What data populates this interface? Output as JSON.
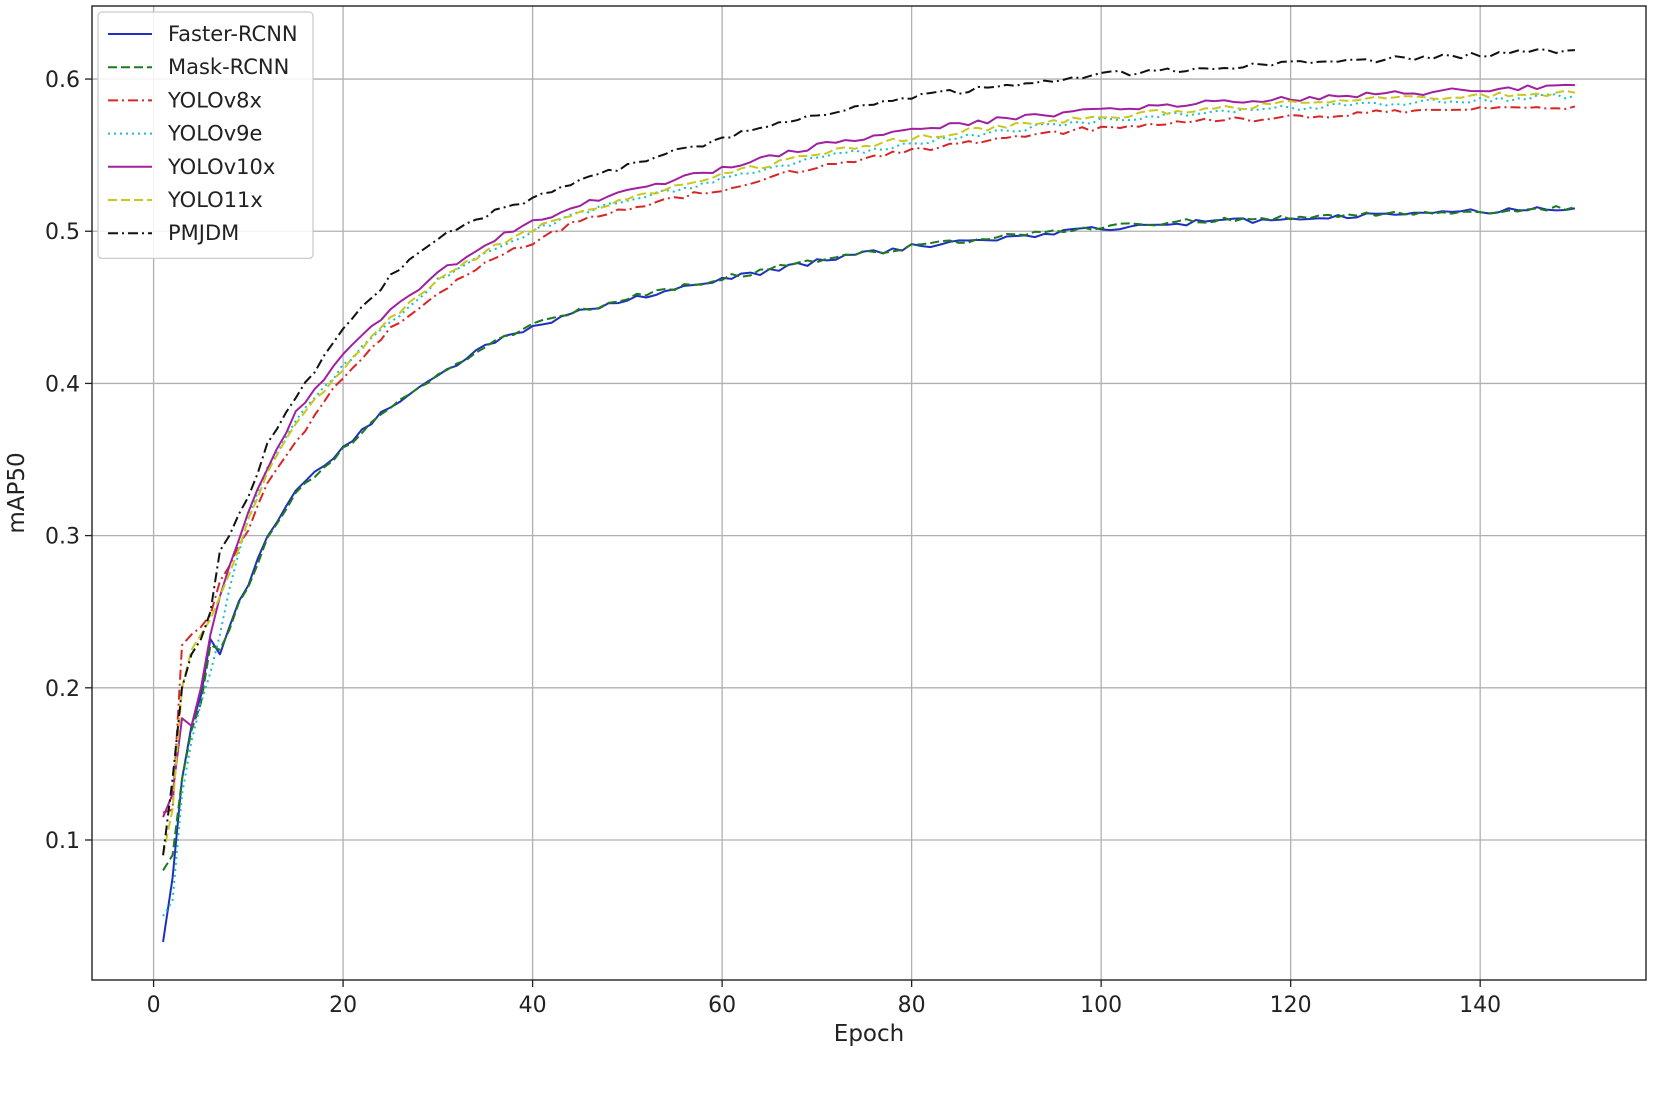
{
  "chart_data": {
    "type": "line",
    "title": "",
    "xlabel": "Epoch",
    "ylabel": "mAP50",
    "xlim": [
      -6.5,
      157.5
    ],
    "ylim": [
      0.008,
      0.648
    ],
    "x_ticks": [
      0,
      20,
      40,
      60,
      80,
      100,
      120,
      140
    ],
    "y_ticks": [
      0.1,
      0.2,
      0.3,
      0.4,
      0.5,
      0.6
    ],
    "grid": true,
    "legend_position": "upper left",
    "x_start": 1,
    "x_end": 150,
    "series": [
      {
        "name": "Faster-RCNN",
        "color": "#1f2fbf",
        "style": "solid",
        "points": [
          [
            1,
            0.033
          ],
          [
            2,
            0.075
          ],
          [
            3,
            0.14
          ],
          [
            4,
            0.175
          ],
          [
            5,
            0.195
          ],
          [
            6,
            0.232
          ],
          [
            7,
            0.222
          ],
          [
            8,
            0.24
          ],
          [
            9,
            0.258
          ],
          [
            10,
            0.267
          ],
          [
            12,
            0.3
          ],
          [
            15,
            0.33
          ],
          [
            20,
            0.358
          ],
          [
            25,
            0.385
          ],
          [
            30,
            0.405
          ],
          [
            35,
            0.425
          ],
          [
            40,
            0.437
          ],
          [
            45,
            0.448
          ],
          [
            50,
            0.455
          ],
          [
            60,
            0.468
          ],
          [
            70,
            0.48
          ],
          [
            80,
            0.49
          ],
          [
            90,
            0.496
          ],
          [
            100,
            0.502
          ],
          [
            110,
            0.506
          ],
          [
            120,
            0.508
          ],
          [
            130,
            0.511
          ],
          [
            140,
            0.513
          ],
          [
            150,
            0.515
          ]
        ]
      },
      {
        "name": "Mask-RCNN",
        "color": "#1e7a1e",
        "style": "dashed",
        "points": [
          [
            1,
            0.08
          ],
          [
            2,
            0.09
          ],
          [
            3,
            0.14
          ],
          [
            4,
            0.172
          ],
          [
            5,
            0.19
          ],
          [
            6,
            0.228
          ],
          [
            7,
            0.225
          ],
          [
            8,
            0.238
          ],
          [
            9,
            0.255
          ],
          [
            10,
            0.268
          ],
          [
            12,
            0.298
          ],
          [
            15,
            0.328
          ],
          [
            20,
            0.357
          ],
          [
            25,
            0.384
          ],
          [
            30,
            0.405
          ],
          [
            35,
            0.425
          ],
          [
            40,
            0.438
          ],
          [
            45,
            0.448
          ],
          [
            50,
            0.456
          ],
          [
            60,
            0.469
          ],
          [
            70,
            0.481
          ],
          [
            80,
            0.49
          ],
          [
            90,
            0.497
          ],
          [
            100,
            0.503
          ],
          [
            110,
            0.507
          ],
          [
            120,
            0.509
          ],
          [
            130,
            0.512
          ],
          [
            140,
            0.513
          ],
          [
            150,
            0.516
          ]
        ]
      },
      {
        "name": "YOLOv8x",
        "color": "#d62728",
        "style": "dashdot",
        "points": [
          [
            1,
            0.118
          ],
          [
            2,
            0.12
          ],
          [
            3,
            0.228
          ],
          [
            4,
            0.235
          ],
          [
            5,
            0.24
          ],
          [
            6,
            0.248
          ],
          [
            7,
            0.27
          ],
          [
            8,
            0.28
          ],
          [
            10,
            0.305
          ],
          [
            12,
            0.335
          ],
          [
            15,
            0.36
          ],
          [
            20,
            0.405
          ],
          [
            25,
            0.436
          ],
          [
            30,
            0.46
          ],
          [
            35,
            0.479
          ],
          [
            40,
            0.493
          ],
          [
            45,
            0.507
          ],
          [
            50,
            0.515
          ],
          [
            60,
            0.528
          ],
          [
            70,
            0.543
          ],
          [
            80,
            0.553
          ],
          [
            90,
            0.562
          ],
          [
            100,
            0.568
          ],
          [
            110,
            0.572
          ],
          [
            120,
            0.575
          ],
          [
            130,
            0.578
          ],
          [
            140,
            0.58
          ],
          [
            150,
            0.582
          ]
        ]
      },
      {
        "name": "YOLOv9e",
        "color": "#17becf",
        "style": "dotted",
        "points": [
          [
            1,
            0.05
          ],
          [
            2,
            0.06
          ],
          [
            3,
            0.13
          ],
          [
            4,
            0.165
          ],
          [
            5,
            0.19
          ],
          [
            6,
            0.21
          ],
          [
            7,
            0.235
          ],
          [
            8,
            0.265
          ],
          [
            10,
            0.31
          ],
          [
            12,
            0.345
          ],
          [
            15,
            0.375
          ],
          [
            20,
            0.412
          ],
          [
            25,
            0.44
          ],
          [
            30,
            0.468
          ],
          [
            35,
            0.486
          ],
          [
            40,
            0.5
          ],
          [
            45,
            0.512
          ],
          [
            50,
            0.52
          ],
          [
            60,
            0.534
          ],
          [
            70,
            0.548
          ],
          [
            80,
            0.558
          ],
          [
            90,
            0.566
          ],
          [
            100,
            0.573
          ],
          [
            110,
            0.578
          ],
          [
            120,
            0.581
          ],
          [
            130,
            0.584
          ],
          [
            140,
            0.586
          ],
          [
            150,
            0.589
          ]
        ]
      },
      {
        "name": "YOLOv10x",
        "color": "#a020a0",
        "style": "solid",
        "points": [
          [
            1,
            0.115
          ],
          [
            2,
            0.13
          ],
          [
            3,
            0.18
          ],
          [
            4,
            0.175
          ],
          [
            5,
            0.2
          ],
          [
            6,
            0.235
          ],
          [
            7,
            0.26
          ],
          [
            8,
            0.28
          ],
          [
            10,
            0.315
          ],
          [
            12,
            0.345
          ],
          [
            15,
            0.38
          ],
          [
            20,
            0.418
          ],
          [
            25,
            0.448
          ],
          [
            30,
            0.472
          ],
          [
            35,
            0.492
          ],
          [
            40,
            0.506
          ],
          [
            45,
            0.517
          ],
          [
            50,
            0.526
          ],
          [
            60,
            0.541
          ],
          [
            70,
            0.556
          ],
          [
            80,
            0.566
          ],
          [
            90,
            0.574
          ],
          [
            100,
            0.58
          ],
          [
            110,
            0.584
          ],
          [
            120,
            0.587
          ],
          [
            130,
            0.59
          ],
          [
            140,
            0.593
          ],
          [
            150,
            0.596
          ]
        ]
      },
      {
        "name": "YOLO11x",
        "color": "#c8c81e",
        "style": "dashed",
        "points": [
          [
            1,
            0.09
          ],
          [
            2,
            0.12
          ],
          [
            3,
            0.2
          ],
          [
            4,
            0.225
          ],
          [
            5,
            0.235
          ],
          [
            6,
            0.245
          ],
          [
            7,
            0.26
          ],
          [
            8,
            0.275
          ],
          [
            10,
            0.31
          ],
          [
            12,
            0.34
          ],
          [
            15,
            0.375
          ],
          [
            20,
            0.41
          ],
          [
            25,
            0.443
          ],
          [
            30,
            0.467
          ],
          [
            35,
            0.487
          ],
          [
            40,
            0.501
          ],
          [
            45,
            0.513
          ],
          [
            50,
            0.522
          ],
          [
            60,
            0.537
          ],
          [
            70,
            0.551
          ],
          [
            80,
            0.561
          ],
          [
            90,
            0.569
          ],
          [
            100,
            0.575
          ],
          [
            110,
            0.58
          ],
          [
            120,
            0.584
          ],
          [
            130,
            0.587
          ],
          [
            140,
            0.589
          ],
          [
            150,
            0.591
          ]
        ]
      },
      {
        "name": "PMJDM",
        "color": "#111111",
        "style": "dashdot",
        "points": [
          [
            1,
            0.09
          ],
          [
            2,
            0.14
          ],
          [
            3,
            0.2
          ],
          [
            4,
            0.222
          ],
          [
            5,
            0.232
          ],
          [
            6,
            0.25
          ],
          [
            7,
            0.29
          ],
          [
            8,
            0.3
          ],
          [
            10,
            0.325
          ],
          [
            12,
            0.36
          ],
          [
            15,
            0.39
          ],
          [
            20,
            0.435
          ],
          [
            25,
            0.47
          ],
          [
            30,
            0.495
          ],
          [
            35,
            0.51
          ],
          [
            40,
            0.522
          ],
          [
            45,
            0.533
          ],
          [
            50,
            0.543
          ],
          [
            60,
            0.561
          ],
          [
            70,
            0.576
          ],
          [
            80,
            0.588
          ],
          [
            90,
            0.596
          ],
          [
            100,
            0.603
          ],
          [
            110,
            0.607
          ],
          [
            120,
            0.61
          ],
          [
            130,
            0.613
          ],
          [
            140,
            0.616
          ],
          [
            150,
            0.619
          ]
        ]
      }
    ]
  }
}
